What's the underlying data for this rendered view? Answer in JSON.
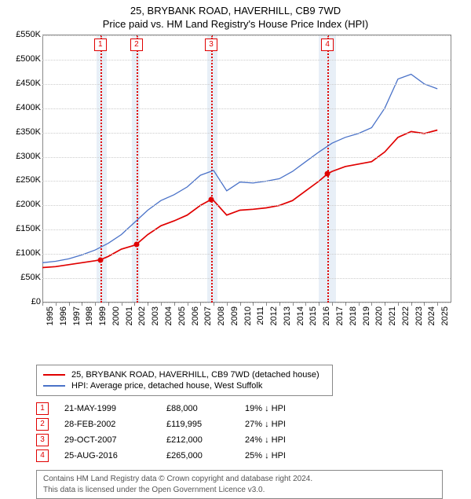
{
  "title": {
    "line1": "25, BRYBANK ROAD, HAVERHILL, CB9 7WD",
    "line2": "Price paid vs. HM Land Registry's House Price Index (HPI)"
  },
  "chart": {
    "type": "line",
    "background_color": "#ffffff",
    "grid_color": "#cccccc",
    "axis_color": "#888888",
    "title_fontsize": 13,
    "label_fontsize": 11,
    "x_min": 1995,
    "x_max": 2026,
    "x_tick_step": 1,
    "x_tick_labels": [
      "1995",
      "1996",
      "1997",
      "1998",
      "1999",
      "2000",
      "2001",
      "2002",
      "2003",
      "2004",
      "2005",
      "2006",
      "2007",
      "2008",
      "2009",
      "2010",
      "2011",
      "2012",
      "2013",
      "2014",
      "2015",
      "2016",
      "2017",
      "2018",
      "2019",
      "2020",
      "2021",
      "2022",
      "2023",
      "2024",
      "2025"
    ],
    "y_min": 0,
    "y_max": 550,
    "y_tick_step": 50,
    "y_tick_labels": [
      "£0",
      "£50K",
      "£100K",
      "£150K",
      "£200K",
      "£250K",
      "£300K",
      "£350K",
      "£400K",
      "£450K",
      "£500K",
      "£550K"
    ],
    "bands": [
      {
        "start": 1999.1,
        "end": 1999.9,
        "color": "rgba(120,160,210,0.17)"
      },
      {
        "start": 2001.8,
        "end": 2002.4,
        "color": "rgba(120,160,210,0.17)"
      },
      {
        "start": 2007.5,
        "end": 2008.3,
        "color": "rgba(120,160,210,0.17)"
      },
      {
        "start": 2016.0,
        "end": 2017.3,
        "color": "rgba(120,160,210,0.17)"
      }
    ],
    "vlines": [
      {
        "x": 1999.4,
        "color": "#e00000"
      },
      {
        "x": 2002.15,
        "color": "#e00000"
      },
      {
        "x": 2007.82,
        "color": "#e00000"
      },
      {
        "x": 2016.65,
        "color": "#e00000"
      }
    ],
    "flags": [
      {
        "x": 1999.4,
        "label": "1"
      },
      {
        "x": 2002.15,
        "label": "2"
      },
      {
        "x": 2007.82,
        "label": "3"
      },
      {
        "x": 2016.65,
        "label": "4"
      }
    ],
    "series": [
      {
        "name": "25, BRYBANK ROAD, HAVERHILL, CB9 7WD (detached house)",
        "color": "#e00000",
        "line_width": 1.7,
        "x": [
          1995,
          1996,
          1997,
          1998,
          1999,
          1999.4,
          2000,
          2001,
          2002,
          2002.15,
          2003,
          2004,
          2005,
          2006,
          2007,
          2007.82,
          2008,
          2009,
          2010,
          2011,
          2012,
          2013,
          2014,
          2015,
          2016,
          2016.65,
          2017,
          2018,
          2019,
          2020,
          2021,
          2022,
          2023,
          2024,
          2025
        ],
        "y": [
          72,
          74,
          78,
          82,
          86,
          88,
          95,
          110,
          118,
          120,
          140,
          158,
          168,
          180,
          200,
          212,
          210,
          180,
          190,
          192,
          195,
          200,
          210,
          230,
          250,
          265,
          270,
          280,
          285,
          290,
          310,
          340,
          352,
          348,
          355
        ]
      },
      {
        "name": "HPI: Average price, detached house, West Suffolk",
        "color": "#4a72c8",
        "line_width": 1.3,
        "x": [
          1995,
          1996,
          1997,
          1998,
          1999,
          2000,
          2001,
          2002,
          2003,
          2004,
          2005,
          2006,
          2007,
          2008,
          2009,
          2010,
          2011,
          2012,
          2013,
          2014,
          2015,
          2016,
          2017,
          2018,
          2019,
          2020,
          2021,
          2022,
          2023,
          2024,
          2025
        ],
        "y": [
          82,
          85,
          90,
          98,
          108,
          122,
          140,
          165,
          190,
          210,
          222,
          238,
          262,
          272,
          230,
          248,
          246,
          250,
          255,
          270,
          290,
          310,
          328,
          340,
          348,
          360,
          400,
          460,
          470,
          450,
          440
        ]
      }
    ],
    "markers": [
      {
        "x": 1999.4,
        "y": 88,
        "color": "#e00000"
      },
      {
        "x": 2002.15,
        "y": 120,
        "color": "#e00000"
      },
      {
        "x": 2007.82,
        "y": 212,
        "color": "#e00000"
      },
      {
        "x": 2016.65,
        "y": 265,
        "color": "#e00000"
      }
    ]
  },
  "legend": {
    "items": [
      {
        "label": "25, BRYBANK ROAD, HAVERHILL, CB9 7WD (detached house)",
        "color": "#e00000"
      },
      {
        "label": "HPI: Average price, detached house, West Suffolk",
        "color": "#4a72c8"
      }
    ]
  },
  "sales": [
    {
      "flag": "1",
      "date": "21-MAY-1999",
      "price": "£88,000",
      "pct": "19% ↓ HPI"
    },
    {
      "flag": "2",
      "date": "28-FEB-2002",
      "price": "£119,995",
      "pct": "27% ↓ HPI"
    },
    {
      "flag": "3",
      "date": "29-OCT-2007",
      "price": "£212,000",
      "pct": "24% ↓ HPI"
    },
    {
      "flag": "4",
      "date": "25-AUG-2016",
      "price": "£265,000",
      "pct": "25% ↓ HPI"
    }
  ],
  "footer": {
    "line1": "Contains HM Land Registry data © Crown copyright and database right 2024.",
    "line2": "This data is licensed under the Open Government Licence v3.0."
  }
}
